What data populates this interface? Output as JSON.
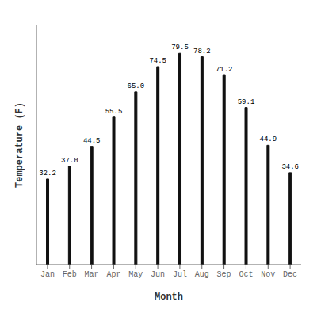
{
  "chart_data": {
    "type": "bar",
    "categories": [
      "Jan",
      "Feb",
      "Mar",
      "Apr",
      "May",
      "Jun",
      "Jul",
      "Aug",
      "Sep",
      "Oct",
      "Nov",
      "Dec"
    ],
    "values": [
      32.2,
      37.0,
      44.5,
      55.5,
      65.0,
      74.5,
      79.5,
      78.2,
      71.2,
      59.1,
      44.9,
      34.6
    ],
    "value_labels": [
      "32.2",
      "37.0",
      "44.5",
      "55.5",
      "65.0",
      "74.5",
      "79.5",
      "78.2",
      "71.2",
      "59.1",
      "44.9",
      "34.6"
    ],
    "color": "#111111",
    "xlabel": "Month",
    "ylabel": "Temperature (F)",
    "ylim": [
      0,
      90
    ],
    "data_labels": true,
    "tick_labels": "x",
    "grid": false
  }
}
